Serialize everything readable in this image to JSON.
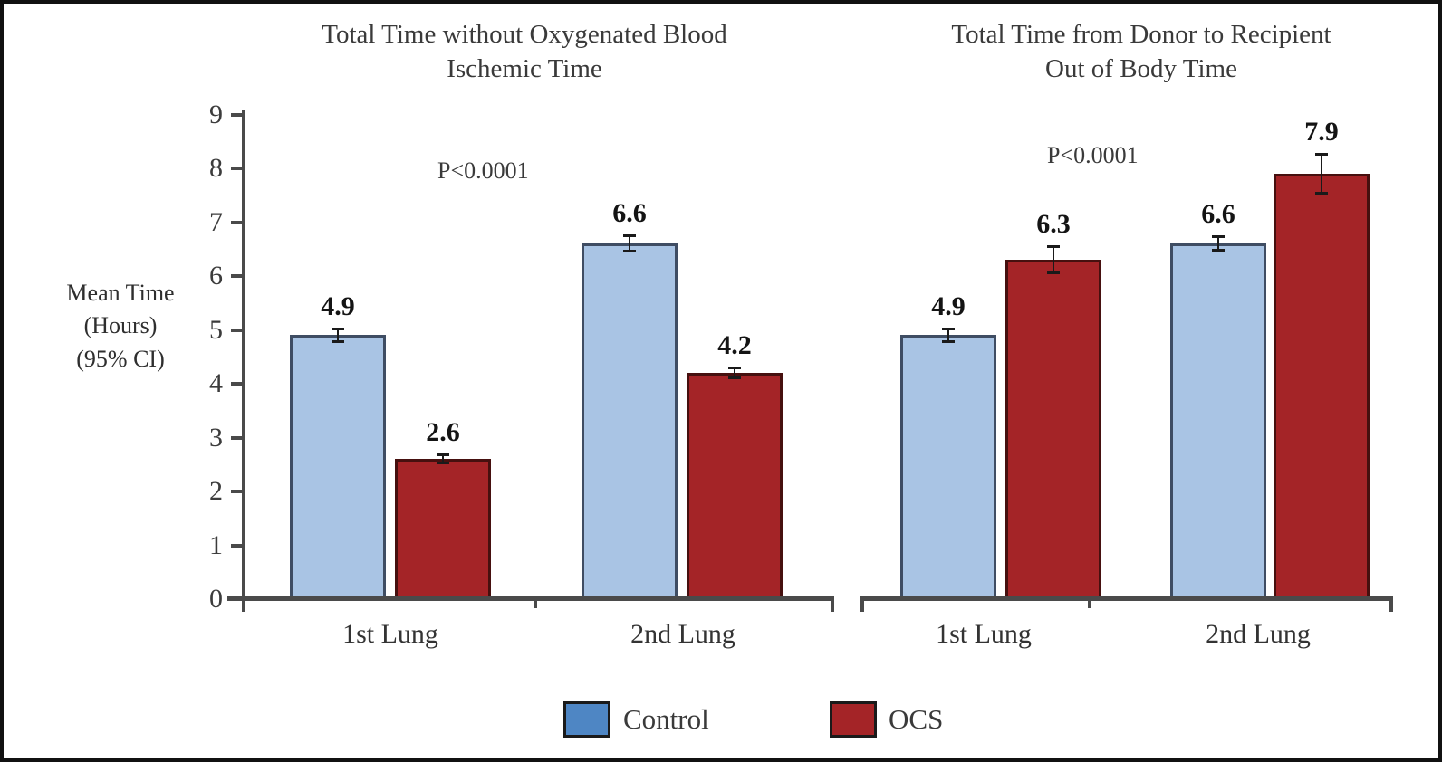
{
  "figure": {
    "ylabel": "Mean Time\n(Hours)\n(95% CI)",
    "legend": [
      {
        "label": "Control",
        "color": "#4e86c4"
      },
      {
        "label": "OCS",
        "color": "#a42427"
      }
    ],
    "colors": {
      "axis": "#4a4a4a",
      "control_fill": "#a9c4e4",
      "control_border": "#3f4d63",
      "ocs_fill": "#a42427",
      "ocs_border": "#46100f",
      "text": "#3a3a3a"
    }
  },
  "chart_data": [
    {
      "type": "bar",
      "title": "Total Time without Oxygenated Blood\nIschemic Time",
      "annotation": "P<0.0001",
      "categories": [
        "1st Lung",
        "2nd Lung"
      ],
      "series": [
        {
          "name": "Control",
          "values": [
            4.9,
            6.6
          ],
          "errors": [
            0.15,
            0.17
          ],
          "fill": "#a9c4e4",
          "border": "#3f4d63"
        },
        {
          "name": "OCS",
          "values": [
            2.6,
            4.2
          ],
          "errors": [
            0.1,
            0.12
          ],
          "fill": "#a42427",
          "border": "#46100f"
        }
      ],
      "ylabel": "Mean Time (Hours) (95% CI)",
      "xlabel": "",
      "ylim": [
        0,
        9
      ],
      "yticks": [
        0,
        1,
        2,
        3,
        4,
        5,
        6,
        7,
        8,
        9
      ],
      "grid": false,
      "error_bars": true,
      "legend_position": "bottom"
    },
    {
      "type": "bar",
      "title": "Total Time from Donor to Recipient\nOut of Body Time",
      "annotation": "P<0.0001",
      "categories": [
        "1st Lung",
        "2nd Lung"
      ],
      "series": [
        {
          "name": "Control",
          "values": [
            4.9,
            6.6
          ],
          "errors": [
            0.15,
            0.15
          ],
          "fill": "#a9c4e4",
          "border": "#3f4d63"
        },
        {
          "name": "OCS",
          "values": [
            6.3,
            7.9
          ],
          "errors": [
            0.27,
            0.38
          ],
          "fill": "#a42427",
          "border": "#46100f"
        }
      ],
      "ylabel": "Mean Time (Hours) (95% CI)",
      "xlabel": "",
      "ylim": [
        0,
        9
      ],
      "yticks": [
        0,
        1,
        2,
        3,
        4,
        5,
        6,
        7,
        8,
        9
      ],
      "grid": false,
      "error_bars": true,
      "legend_position": "bottom"
    }
  ]
}
